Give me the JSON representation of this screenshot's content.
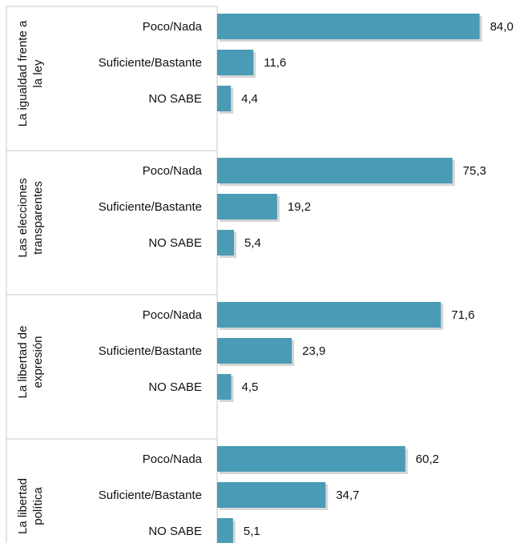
{
  "chart_data": {
    "type": "bar",
    "orientation": "horizontal",
    "title": "",
    "xlabel": "",
    "ylabel": "",
    "xlim": [
      0,
      100
    ],
    "grid": false,
    "legend": "none",
    "bar_color": "#4a9bb5",
    "groups": [
      {
        "label_lines": [
          "La igualdad frente a",
          "la ley"
        ],
        "items": [
          {
            "category": "Poco/Nada",
            "value": 84.0,
            "label": "84,0"
          },
          {
            "category": "Suficiente/Bastante",
            "value": 11.6,
            "label": "11,6"
          },
          {
            "category": "NO SABE",
            "value": 4.4,
            "label": "4,4"
          }
        ]
      },
      {
        "label_lines": [
          "Las elecciones",
          "transparentes"
        ],
        "items": [
          {
            "category": "Poco/Nada",
            "value": 75.3,
            "label": "75,3"
          },
          {
            "category": "Suficiente/Bastante",
            "value": 19.2,
            "label": "19,2"
          },
          {
            "category": "NO SABE",
            "value": 5.4,
            "label": "5,4"
          }
        ]
      },
      {
        "label_lines": [
          "La libertad de",
          "expresión"
        ],
        "items": [
          {
            "category": "Poco/Nada",
            "value": 71.6,
            "label": "71,6"
          },
          {
            "category": "Suficiente/Bastante",
            "value": 23.9,
            "label": "23,9"
          },
          {
            "category": "NO SABE",
            "value": 4.5,
            "label": "4,5"
          }
        ]
      },
      {
        "label_lines": [
          "La libertad",
          "política"
        ],
        "items": [
          {
            "category": "Poco/Nada",
            "value": 60.2,
            "label": "60,2"
          },
          {
            "category": "Suficiente/Bastante",
            "value": 34.7,
            "label": "34,7"
          },
          {
            "category": "NO SABE",
            "value": 5.1,
            "label": "5,1"
          }
        ]
      }
    ]
  }
}
